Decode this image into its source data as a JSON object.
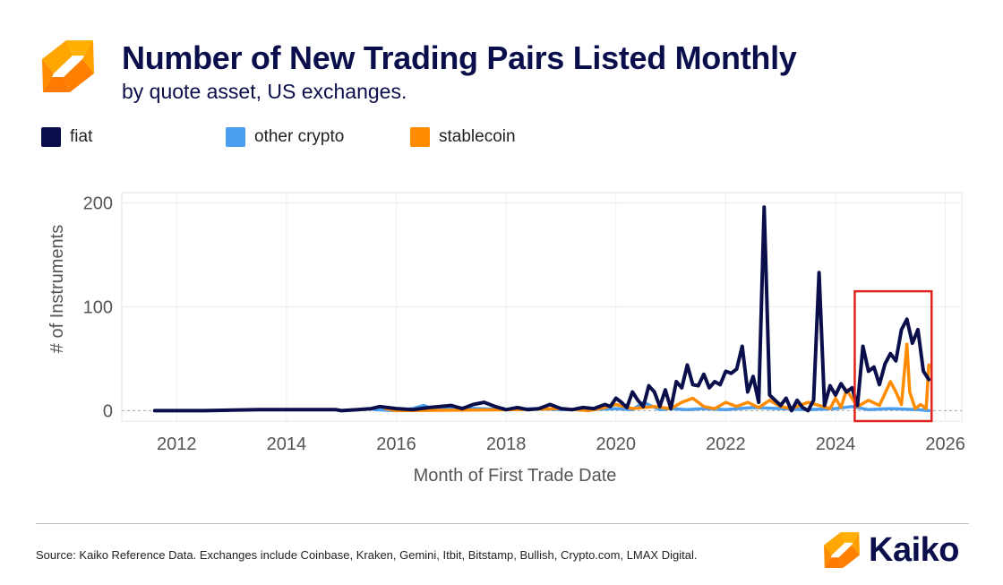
{
  "header": {
    "title": "Number of New Trading Pairs Listed Monthly",
    "subtitle": "by quote asset, US exchanges.",
    "logo_icon": "kaiko-logo-icon"
  },
  "legend": [
    {
      "label": "fiat",
      "color": "#0a0f4c"
    },
    {
      "label": "other crypto",
      "color": "#4a9ff0"
    },
    {
      "label": "stablecoin",
      "color": "#ff8c00"
    }
  ],
  "chart_data": {
    "type": "line",
    "xlabel": "Month of First Trade Date",
    "ylabel": "# of Instruments",
    "xlim": [
      2011.0,
      2026.3
    ],
    "ylim": [
      -10,
      210
    ],
    "x_ticks": [
      2012,
      2014,
      2016,
      2018,
      2020,
      2022,
      2024,
      2026
    ],
    "y_ticks": [
      0,
      100,
      200
    ],
    "grid": true,
    "legend_placement": "top",
    "series": [
      {
        "name": "fiat",
        "color": "#0a0f4c",
        "x": [
          2011.6,
          2012.5,
          2013.5,
          2014.5,
          2014.9,
          2015.0,
          2015.3,
          2015.55,
          2015.7,
          2016.0,
          2016.3,
          2016.6,
          2016.8,
          2017.0,
          2017.2,
          2017.4,
          2017.6,
          2017.8,
          2018.0,
          2018.2,
          2018.4,
          2018.6,
          2018.8,
          2019.0,
          2019.2,
          2019.4,
          2019.6,
          2019.8,
          2019.9,
          2020.0,
          2020.1,
          2020.2,
          2020.3,
          2020.4,
          2020.5,
          2020.6,
          2020.7,
          2020.8,
          2020.9,
          2021.0,
          2021.1,
          2021.2,
          2021.3,
          2021.4,
          2021.5,
          2021.6,
          2021.7,
          2021.8,
          2021.9,
          2022.0,
          2022.1,
          2022.2,
          2022.3,
          2022.4,
          2022.5,
          2022.6,
          2022.7,
          2022.8,
          2022.9,
          2023.0,
          2023.1,
          2023.2,
          2023.3,
          2023.4,
          2023.5,
          2023.6,
          2023.7,
          2023.8,
          2023.9,
          2024.0,
          2024.1,
          2024.2,
          2024.3,
          2024.4,
          2024.5,
          2024.6,
          2024.7,
          2024.8,
          2024.9,
          2025.0,
          2025.1,
          2025.2,
          2025.3,
          2025.4,
          2025.5,
          2025.6,
          2025.7
        ],
        "y": [
          0,
          0,
          1,
          1,
          1,
          0,
          1,
          2,
          4,
          2,
          1,
          3,
          4,
          5,
          2,
          6,
          8,
          4,
          1,
          3,
          1,
          2,
          6,
          2,
          1,
          3,
          2,
          6,
          4,
          12,
          8,
          3,
          18,
          10,
          4,
          24,
          18,
          4,
          20,
          2,
          28,
          22,
          44,
          25,
          24,
          35,
          22,
          28,
          25,
          38,
          36,
          40,
          62,
          18,
          33,
          8,
          196,
          15,
          10,
          5,
          12,
          0,
          10,
          3,
          0,
          10,
          133,
          5,
          24,
          15,
          26,
          18,
          22,
          5,
          62,
          38,
          42,
          25,
          45,
          55,
          48,
          78,
          88,
          65,
          78,
          38,
          30
        ]
      },
      {
        "name": "other crypto",
        "color": "#4a9ff0",
        "x": [
          2015.6,
          2016.0,
          2016.3,
          2016.5,
          2016.7,
          2017.0,
          2017.5,
          2018.0,
          2018.5,
          2019.0,
          2019.5,
          2020.0,
          2020.3,
          2020.5,
          2020.8,
          2021.0,
          2021.3,
          2021.6,
          2022.0,
          2022.5,
          2023.0,
          2023.5,
          2024.0,
          2024.3,
          2024.6,
          2025.0,
          2025.5,
          2025.7
        ],
        "y": [
          1,
          0,
          2,
          5,
          1,
          3,
          2,
          1,
          2,
          1,
          1,
          2,
          1,
          8,
          1,
          2,
          1,
          2,
          1,
          3,
          2,
          1,
          2,
          4,
          1,
          2,
          1,
          0
        ]
      },
      {
        "name": "stablecoin",
        "color": "#ff8c00",
        "x": [
          2015.8,
          2016.0,
          2018.2,
          2019.0,
          2019.5,
          2019.8,
          2020.0,
          2020.3,
          2020.7,
          2021.0,
          2021.2,
          2021.4,
          2021.6,
          2021.8,
          2022.0,
          2022.2,
          2022.4,
          2022.6,
          2022.8,
          2023.0,
          2023.2,
          2023.5,
          2023.9,
          2024.0,
          2024.1,
          2024.2,
          2024.4,
          2024.6,
          2024.8,
          2025.0,
          2025.1,
          2025.2,
          2025.3,
          2025.35,
          2025.45,
          2025.55,
          2025.65,
          2025.7
        ],
        "y": [
          2,
          0,
          1,
          2,
          0,
          3,
          6,
          2,
          4,
          2,
          8,
          12,
          4,
          2,
          8,
          4,
          8,
          3,
          10,
          4,
          2,
          8,
          2,
          12,
          3,
          20,
          4,
          10,
          5,
          28,
          18,
          6,
          64,
          18,
          2,
          6,
          2,
          44
        ]
      }
    ],
    "annotation": {
      "type": "highlight-box",
      "x_range": [
        2024.35,
        2025.75
      ],
      "y_range": [
        -10,
        115
      ],
      "color": "#e0231c"
    }
  },
  "footer": {
    "source": "Source: Kaiko Reference Data. Exchanges include Coinbase, Kraken, Gemini, Itbit, Bitstamp, Bullish, Crypto.com, LMAX Digital.",
    "brand": "Kaiko",
    "brand_icon": "kaiko-logo-icon"
  }
}
